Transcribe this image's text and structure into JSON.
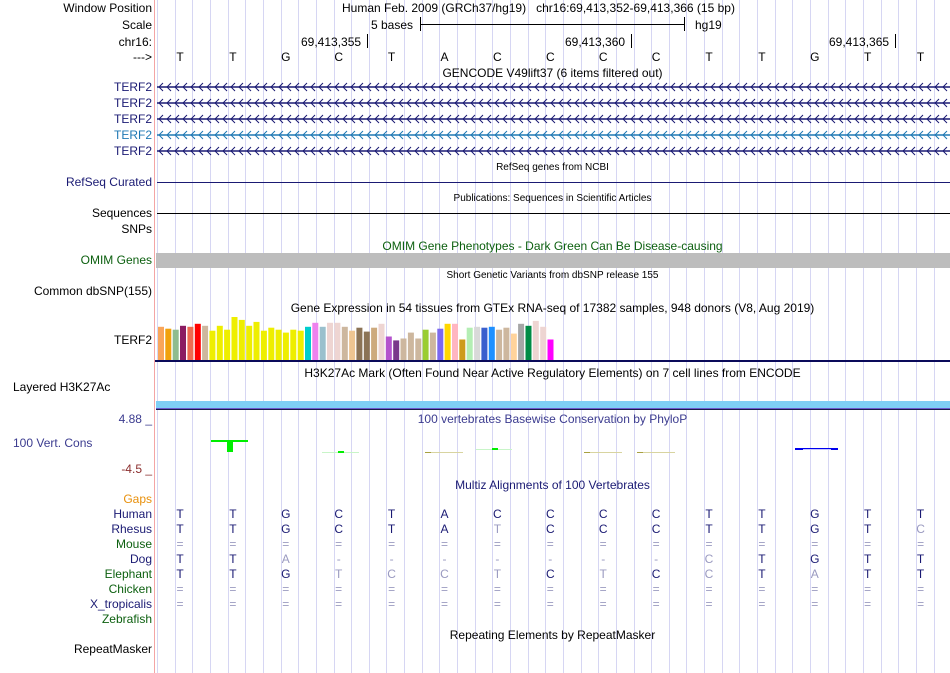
{
  "header": {
    "window_position_label": "Window Position",
    "assembly": "Human Feb. 2009 (GRCh37/hg19)",
    "position": "chr16:69,413,352-69,413,366 (15 bp)",
    "scale_label": "Scale",
    "scale_text": "5 bases",
    "scale_assembly": "hg19",
    "chrom_label": "chr16:",
    "strand_label": "--->",
    "ticks": [
      "69,413,355",
      "69,413,360",
      "69,413,365"
    ],
    "bases": [
      "T",
      "T",
      "G",
      "C",
      "T",
      "A",
      "C",
      "C",
      "C",
      "C",
      "T",
      "T",
      "G",
      "T",
      "T"
    ]
  },
  "gencode": {
    "title": "GENCODE V49lift37 (6 items filtered out)",
    "items": [
      {
        "label": "TERF2",
        "color": "#1a1a73"
      },
      {
        "label": "TERF2",
        "color": "#1a1a73"
      },
      {
        "label": "TERF2",
        "color": "#1a1a73"
      },
      {
        "label": "TERF2",
        "color": "#1f78b4"
      },
      {
        "label": "TERF2",
        "color": "#1a1a73"
      }
    ]
  },
  "refseq": {
    "title": "RefSeq genes from NCBI",
    "label": "RefSeq Curated"
  },
  "publications": {
    "title": "Publications: Sequences in Scientific Articles",
    "label1": "Sequences",
    "label2": "SNPs"
  },
  "omim": {
    "title": "OMIM Gene Phenotypes - Dark Green Can Be Disease-causing",
    "label": "OMIM Genes",
    "bar_color": "#bdbdbd"
  },
  "dbsnp": {
    "title": "Short Genetic Variants from dbSNP release 155",
    "label": "Common dbSNP(155)"
  },
  "gtex": {
    "title": "Gene Expression in 54 tissues from GTEx RNA-seq of 17382 samples, 948 donors (V8, Aug 2019)",
    "label": "TERF2",
    "bars": [
      {
        "color": "#f9a55a",
        "value": 34
      },
      {
        "color": "#f1a10d",
        "value": 32
      },
      {
        "color": "#8fbc8f",
        "value": 31
      },
      {
        "color": "#8b1c62",
        "value": 35
      },
      {
        "color": "#ee6a50",
        "value": 34
      },
      {
        "color": "#ff0000",
        "value": 37
      },
      {
        "color": "#cdb79e",
        "value": 35
      },
      {
        "color": "#eeee00",
        "value": 30
      },
      {
        "color": "#eeee00",
        "value": 35
      },
      {
        "color": "#eeee00",
        "value": 31
      },
      {
        "color": "#eeee00",
        "value": 44
      },
      {
        "color": "#eeee00",
        "value": 41
      },
      {
        "color": "#eeee00",
        "value": 35
      },
      {
        "color": "#eeee00",
        "value": 39
      },
      {
        "color": "#eeee00",
        "value": 30
      },
      {
        "color": "#eeee00",
        "value": 33
      },
      {
        "color": "#eeee00",
        "value": 31
      },
      {
        "color": "#eeee00",
        "value": 28
      },
      {
        "color": "#eeee00",
        "value": 31
      },
      {
        "color": "#eeee00",
        "value": 30
      },
      {
        "color": "#00cdcd",
        "value": 34
      },
      {
        "color": "#ee82ee",
        "value": 38
      },
      {
        "color": "#9ac0cd",
        "value": 34
      },
      {
        "color": "#eed5d2",
        "value": 38
      },
      {
        "color": "#eed5d2",
        "value": 38
      },
      {
        "color": "#cdb79e",
        "value": 34
      },
      {
        "color": "#eec591",
        "value": 30
      },
      {
        "color": "#8b7355",
        "value": 33
      },
      {
        "color": "#8b7355",
        "value": 29
      },
      {
        "color": "#cdaa7d",
        "value": 33
      },
      {
        "color": "#eed5d2",
        "value": 37
      },
      {
        "color": "#b452cd",
        "value": 24
      },
      {
        "color": "#7a378b",
        "value": 20
      },
      {
        "color": "#cdb79e",
        "value": 22
      },
      {
        "color": "#cdb79e",
        "value": 28
      },
      {
        "color": "#cdb79e",
        "value": 22
      },
      {
        "color": "#9acd32",
        "value": 31
      },
      {
        "color": "#cdb79e",
        "value": 28
      },
      {
        "color": "#7b68ee",
        "value": 32
      },
      {
        "color": "#ffd700",
        "value": 37
      },
      {
        "color": "#ffb6c1",
        "value": 37
      },
      {
        "color": "#cd9b1d",
        "value": 21
      },
      {
        "color": "#b4eeb4",
        "value": 33
      },
      {
        "color": "#d9d9d9",
        "value": 34
      },
      {
        "color": "#3a5fcd",
        "value": 33
      },
      {
        "color": "#1e90ff",
        "value": 34
      },
      {
        "color": "#cdb79e",
        "value": 31
      },
      {
        "color": "#cdb79e",
        "value": 33
      },
      {
        "color": "#ffd39b",
        "value": 27
      },
      {
        "color": "#a6a6a6",
        "value": 37
      },
      {
        "color": "#008b45",
        "value": 35
      },
      {
        "color": "#eed5d2",
        "value": 40
      },
      {
        "color": "#eed5d2",
        "value": 34
      },
      {
        "color": "#ff00ff",
        "value": 21
      }
    ]
  },
  "h3k27ac": {
    "title": "H3K27Ac Mark (Often Found Near Active Regulatory Elements) on 7 cell lines from ENCODE",
    "label": "Layered H3K27Ac"
  },
  "phylop": {
    "title": "100 vertebrates Basewise Conservation by PhyloP",
    "label": "100 Vert. Cons",
    "max": "4.88 _",
    "min": "-4.5 _"
  },
  "multiz": {
    "title": "Multiz Alignments of 100 Vertebrates",
    "gaps_label": "Gaps",
    "species": [
      {
        "name": "Human",
        "color": "navy",
        "bases": [
          "T",
          "T",
          "G",
          "C",
          "T",
          "A",
          "C",
          "C",
          "C",
          "C",
          "T",
          "T",
          "G",
          "T",
          "T"
        ]
      },
      {
        "name": "Rhesus",
        "color": "navy",
        "bases": [
          "T",
          "T",
          "G",
          "C",
          "T",
          "A",
          "T",
          "C",
          "C",
          "C",
          "T",
          "T",
          "G",
          "T",
          "C"
        ]
      },
      {
        "name": "Mouse",
        "color": "green",
        "bases": [
          "=",
          "=",
          "=",
          "=",
          "=",
          "=",
          "=",
          "=",
          "=",
          "=",
          "=",
          "=",
          "=",
          "=",
          "="
        ]
      },
      {
        "name": "Dog",
        "color": "navy",
        "bases": [
          "T",
          "T",
          "A",
          "-",
          "-",
          "-",
          "-",
          "-",
          "-",
          "-",
          "C",
          "T",
          "G",
          "T",
          "T"
        ]
      },
      {
        "name": "Elephant",
        "color": "green",
        "bases": [
          "T",
          "T",
          "G",
          "T",
          "C",
          "C",
          "T",
          "C",
          "T",
          "C",
          "C",
          "T",
          "A",
          "T",
          "T"
        ]
      },
      {
        "name": "Chicken",
        "color": "green",
        "bases": [
          "=",
          "=",
          "=",
          "=",
          "=",
          "=",
          "=",
          "=",
          "=",
          "=",
          "=",
          "=",
          "=",
          "=",
          "="
        ]
      },
      {
        "name": "X_tropicalis",
        "color": "navy",
        "bases": [
          "=",
          "=",
          "=",
          "=",
          "=",
          "=",
          "=",
          "=",
          "=",
          "=",
          "=",
          "=",
          "=",
          "=",
          "="
        ]
      },
      {
        "name": "Zebrafish",
        "color": "green",
        "bases": []
      }
    ]
  },
  "repeatmasker": {
    "title": "Repeating Elements by RepeatMasker",
    "label": "RepeatMasker"
  }
}
